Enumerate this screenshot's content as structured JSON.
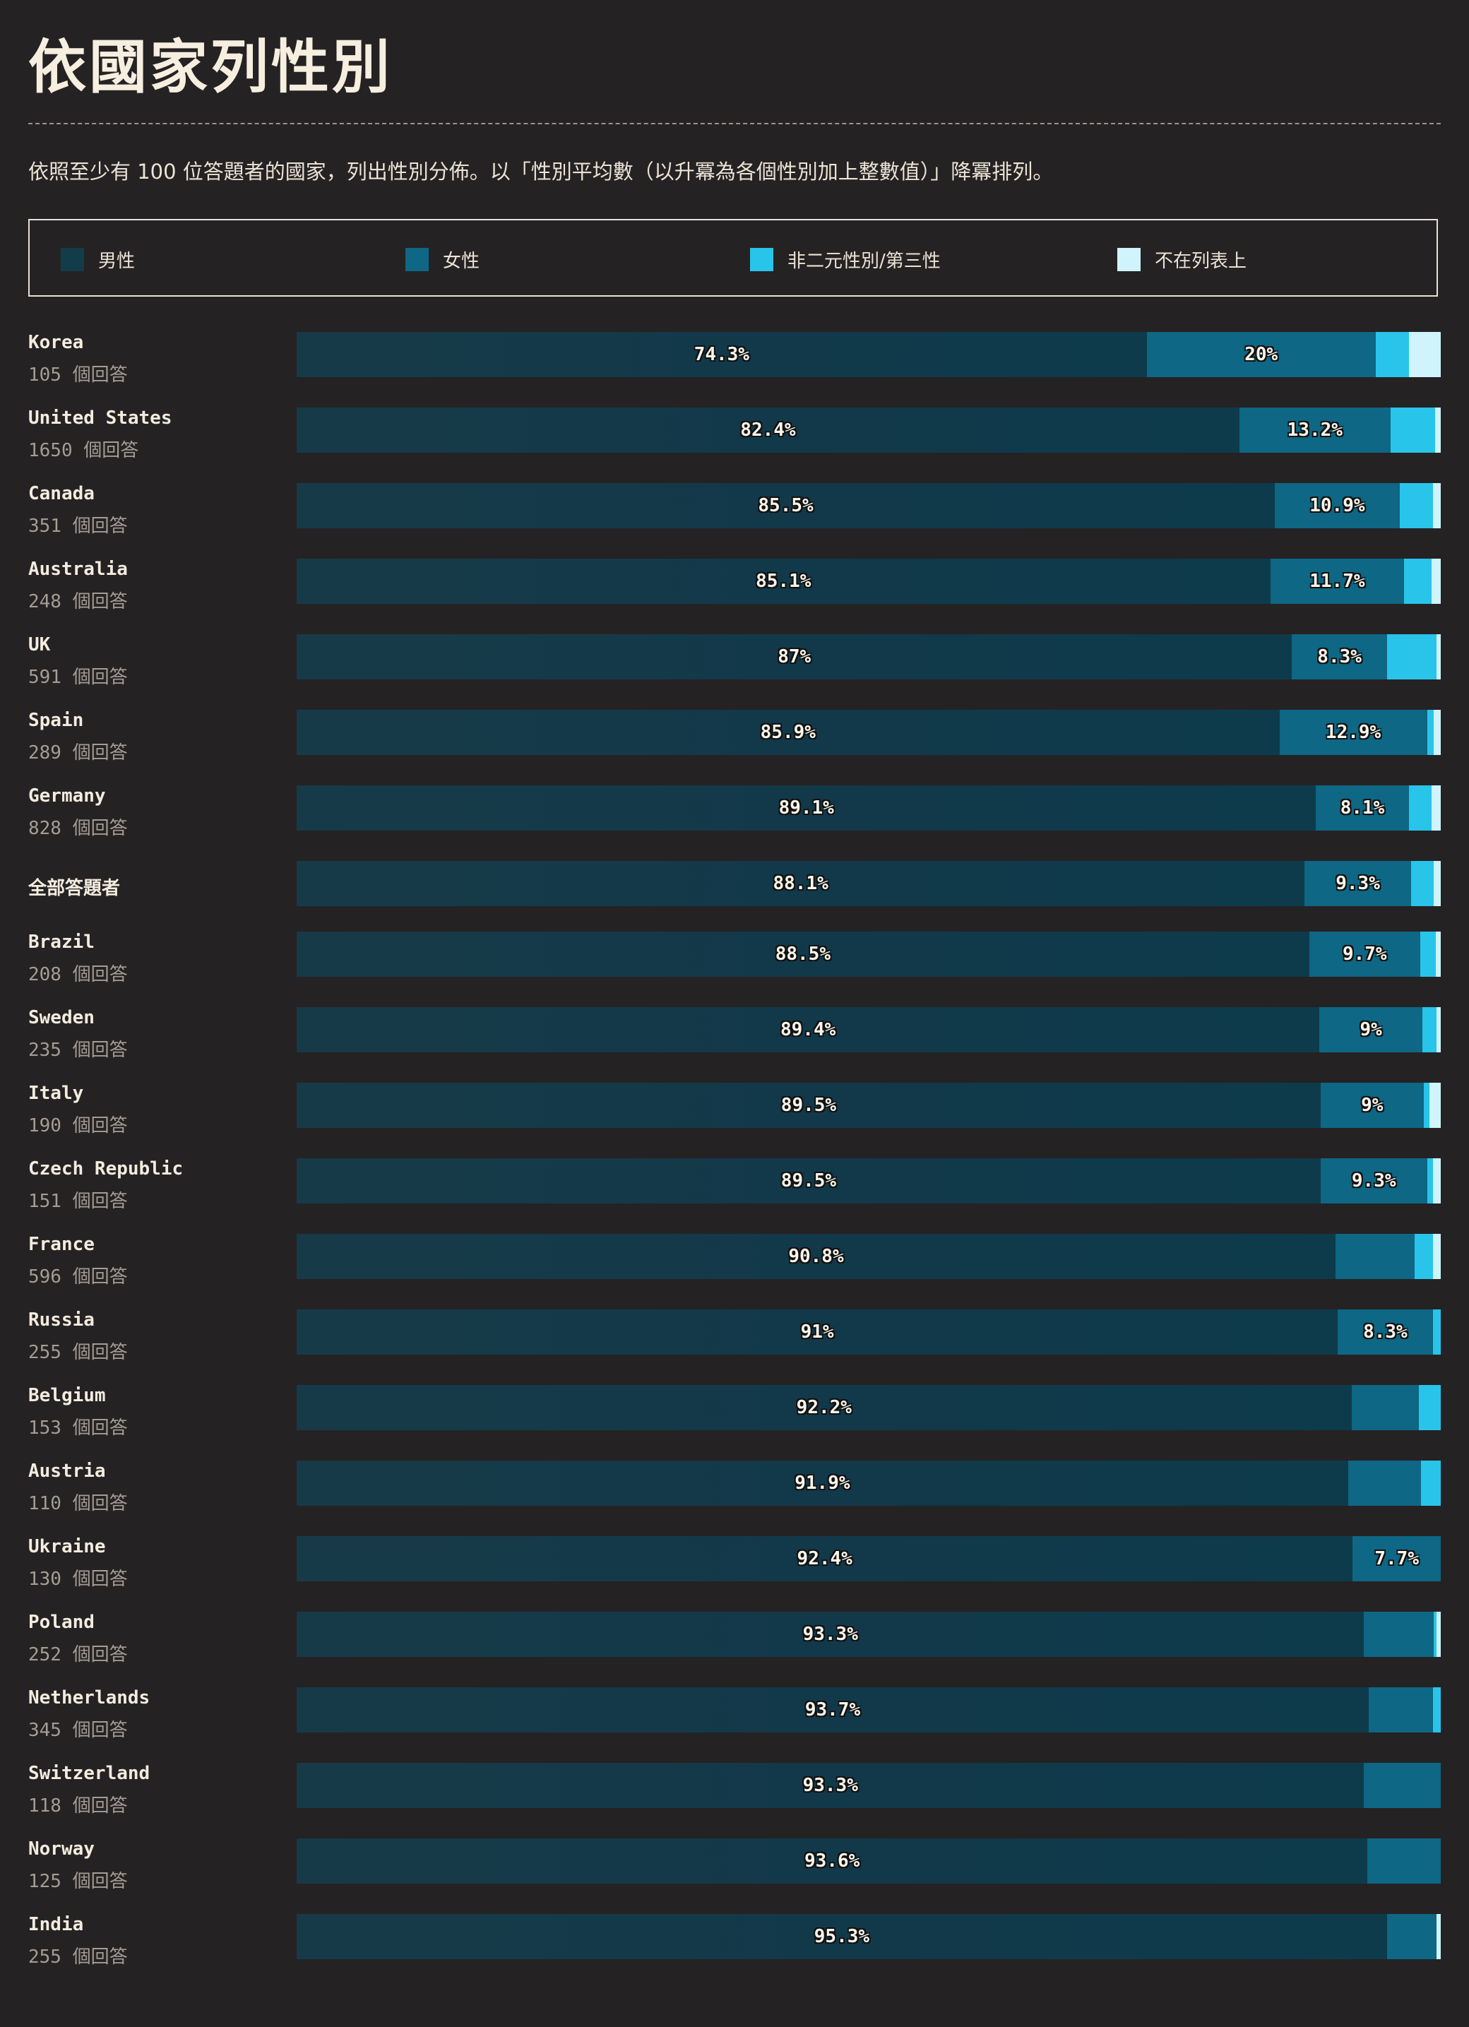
{
  "title": "依國家列性別",
  "description": "依照至少有 100 位答題者的國家，列出性別分佈。以「性別平均數（以升冪為各個性別加上整數值）」降冪排列。",
  "count_suffix": "個回答",
  "legend": [
    {
      "key": "male",
      "label": "男性",
      "color": "#123c49"
    },
    {
      "key": "female",
      "label": "女性",
      "color": "#0e6784"
    },
    {
      "key": "nonbinary",
      "label": "非二元性別/第三性",
      "color": "#29c4ea"
    },
    {
      "key": "other",
      "label": "不在列表上",
      "color": "#cff4fb"
    }
  ],
  "chart_data": {
    "type": "bar",
    "orientation": "horizontal",
    "stacked": true,
    "normalized": true,
    "series_names": [
      "男性",
      "女性",
      "非二元性別/第三性",
      "不在列表上"
    ],
    "rows": [
      {
        "name": "Korea",
        "count": 105,
        "values": [
          74.3,
          20.0,
          2.9,
          2.8
        ],
        "labels": [
          "74.3%",
          "20%"
        ]
      },
      {
        "name": "United States",
        "count": 1650,
        "values": [
          82.4,
          13.2,
          3.9,
          0.5
        ],
        "labels": [
          "82.4%",
          "13.2%"
        ]
      },
      {
        "name": "Canada",
        "count": 351,
        "values": [
          85.5,
          10.9,
          2.9,
          0.7
        ],
        "labels": [
          "85.5%",
          "10.9%"
        ]
      },
      {
        "name": "Australia",
        "count": 248,
        "values": [
          85.1,
          11.7,
          2.4,
          0.8
        ],
        "labels": [
          "85.1%",
          "11.7%"
        ]
      },
      {
        "name": "UK",
        "count": 591,
        "values": [
          87.0,
          8.3,
          4.3,
          0.4
        ],
        "labels": [
          "87%",
          "8.3%"
        ]
      },
      {
        "name": "Spain",
        "count": 289,
        "values": [
          85.9,
          12.9,
          0.6,
          0.6
        ],
        "labels": [
          "85.9%",
          "12.9%"
        ]
      },
      {
        "name": "Germany",
        "count": 828,
        "values": [
          89.1,
          8.1,
          2.0,
          0.8
        ],
        "labels": [
          "89.1%",
          "8.1%"
        ]
      },
      {
        "name": "全部答題者",
        "count": null,
        "values": [
          88.1,
          9.3,
          2.0,
          0.6
        ],
        "labels": [
          "88.1%",
          "9.3%"
        ]
      },
      {
        "name": "Brazil",
        "count": 208,
        "values": [
          88.5,
          9.7,
          1.4,
          0.4
        ],
        "labels": [
          "88.5%",
          "9.7%"
        ]
      },
      {
        "name": "Sweden",
        "count": 235,
        "values": [
          89.4,
          9.0,
          1.2,
          0.4
        ],
        "labels": [
          "89.4%",
          "9%"
        ]
      },
      {
        "name": "Italy",
        "count": 190,
        "values": [
          89.5,
          9.0,
          0.5,
          1.0
        ],
        "labels": [
          "89.5%",
          "9%"
        ]
      },
      {
        "name": "Czech Republic",
        "count": 151,
        "values": [
          89.5,
          9.3,
          0.5,
          0.7
        ],
        "labels": [
          "89.5%",
          "9.3%"
        ]
      },
      {
        "name": "France",
        "count": 596,
        "values": [
          90.8,
          6.9,
          1.6,
          0.7
        ],
        "labels": [
          "90.8%",
          ""
        ]
      },
      {
        "name": "Russia",
        "count": 255,
        "values": [
          91.0,
          8.3,
          0.7,
          0.0
        ],
        "labels": [
          "91%",
          "8.3%"
        ]
      },
      {
        "name": "Belgium",
        "count": 153,
        "values": [
          92.2,
          5.9,
          1.9,
          0.0
        ],
        "labels": [
          "92.2%",
          ""
        ]
      },
      {
        "name": "Austria",
        "count": 110,
        "values": [
          91.9,
          6.4,
          1.7,
          0.0
        ],
        "labels": [
          "91.9%",
          ""
        ]
      },
      {
        "name": "Ukraine",
        "count": 130,
        "values": [
          92.4,
          7.7,
          0.0,
          0.0
        ],
        "labels": [
          "92.4%",
          "7.7%"
        ]
      },
      {
        "name": "Poland",
        "count": 252,
        "values": [
          93.3,
          6.1,
          0.2,
          0.4
        ],
        "labels": [
          "93.3%",
          ""
        ]
      },
      {
        "name": "Netherlands",
        "count": 345,
        "values": [
          93.7,
          5.6,
          0.7,
          0.0
        ],
        "labels": [
          "93.7%",
          ""
        ]
      },
      {
        "name": "Switzerland",
        "count": 118,
        "values": [
          93.3,
          6.7,
          0.0,
          0.0
        ],
        "labels": [
          "93.3%",
          ""
        ]
      },
      {
        "name": "Norway",
        "count": 125,
        "values": [
          93.6,
          6.4,
          0.0,
          0.0
        ],
        "labels": [
          "93.6%",
          ""
        ]
      },
      {
        "name": "India",
        "count": 255,
        "values": [
          95.3,
          4.3,
          0.0,
          0.4
        ],
        "labels": [
          "95.3%",
          ""
        ]
      }
    ]
  }
}
